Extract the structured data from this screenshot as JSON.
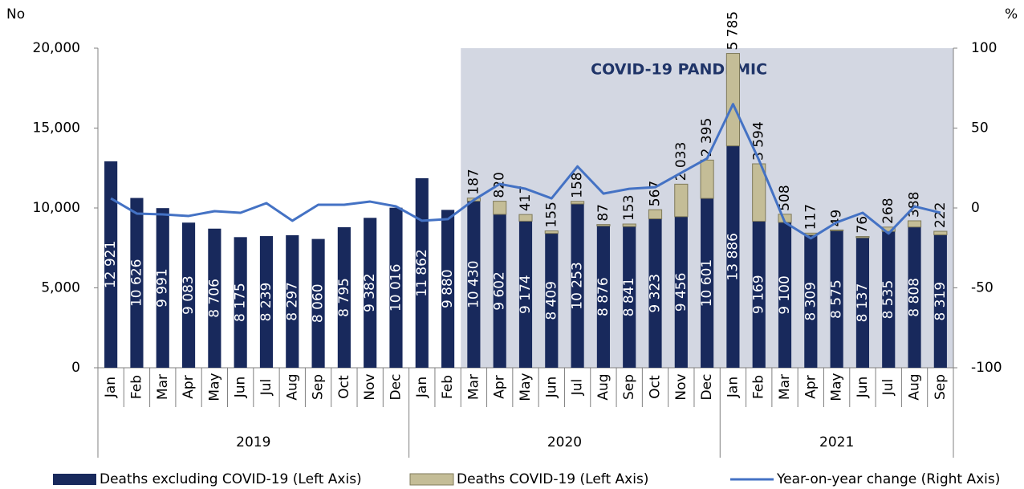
{
  "chart_data": {
    "type": "stacked_bar_line",
    "y_unit_label": "No",
    "y2_unit_label": "%",
    "annotation": {
      "text": "COVID-19 PANDEMIC",
      "from": [
        "2020",
        "Mar"
      ]
    },
    "category_groups": [
      {
        "label": "2019",
        "categories": [
          "Jan",
          "Feb",
          "Mar",
          "Apr",
          "May",
          "Jun",
          "Jul",
          "Aug",
          "Sep",
          "Oct",
          "Nov",
          "Dec"
        ]
      },
      {
        "label": "2020",
        "categories": [
          "Jan",
          "Feb",
          "Mar",
          "Apr",
          "May",
          "Jun",
          "Jul",
          "Aug",
          "Sep",
          "Oct",
          "Nov",
          "Dec"
        ]
      },
      {
        "label": "2021",
        "categories": [
          "Jan",
          "Feb",
          "Mar",
          "Apr",
          "May",
          "Jun",
          "Jul",
          "Aug",
          "Sep"
        ]
      }
    ],
    "series": [
      {
        "name": "Deaths excluding COVID-19 (Left Axis)",
        "color": "#18295c",
        "kind": "bar",
        "values": [
          12921,
          10626,
          9991,
          9083,
          8706,
          8175,
          8239,
          8297,
          8060,
          8795,
          9382,
          10016,
          11862,
          9880,
          10430,
          9602,
          9174,
          8409,
          10253,
          8876,
          8841,
          9323,
          9456,
          10601,
          13886,
          9169,
          9100,
          8309,
          8575,
          8137,
          8535,
          8808,
          8319
        ],
        "value_labels": [
          "12 921",
          "10 626",
          "9 991",
          "9 083",
          "8 706",
          "8 175",
          "8 239",
          "8 297",
          "8 060",
          "8 795",
          "9 382",
          "10 016",
          "11 862",
          "9 880",
          "10 430",
          "9 602",
          "9 174",
          "8 409",
          "10 253",
          "8 876",
          "8 841",
          "9 323",
          "9 456",
          "10 601",
          "13 886",
          "9 169",
          "9 100",
          "8 309",
          "8 575",
          "8 137",
          "8 535",
          "8 808",
          "8 319"
        ]
      },
      {
        "name": "Deaths COVID-19 (Left Axis)",
        "color": "#c4bd97",
        "kind": "bar",
        "values": [
          null,
          null,
          null,
          null,
          null,
          null,
          null,
          null,
          null,
          null,
          null,
          null,
          null,
          null,
          187,
          820,
          417,
          155,
          158,
          87,
          153,
          567,
          2033,
          2395,
          5785,
          3594,
          508,
          117,
          49,
          76,
          268,
          388,
          222
        ],
        "value_labels": [
          null,
          null,
          null,
          null,
          null,
          null,
          null,
          null,
          null,
          null,
          null,
          null,
          null,
          null,
          "187",
          "820",
          "417",
          "155",
          "158",
          "87",
          "153",
          "567",
          "2 033",
          "2 395",
          "5 785",
          "3 594",
          "508",
          "117",
          "49",
          "76",
          "268",
          "388",
          "222"
        ]
      },
      {
        "name": "Year-on-year change (Right Axis)",
        "color": "#4472c4",
        "kind": "line",
        "axis": "y2",
        "values": [
          6,
          -3.5,
          -4,
          -5,
          -2,
          -3,
          3,
          -8,
          2,
          2,
          4,
          1,
          -8,
          -7,
          5,
          15,
          12,
          6,
          26,
          9,
          12,
          13,
          22,
          31,
          65,
          30,
          -9,
          -19,
          -9,
          -3,
          -16,
          1,
          -3
        ]
      }
    ],
    "ylim": [
      0,
      20000
    ],
    "yticks": [
      0,
      {
        "value": 5000,
        "label": "5,000"
      },
      {
        "value": 10000,
        "label": "10,000"
      },
      {
        "value": 15000,
        "label": "15,000"
      },
      {
        "value": 20000,
        "label": "20,000"
      }
    ],
    "y2lim": [
      -100,
      100
    ],
    "y2ticks": [
      -100,
      -50,
      0,
      50,
      100
    ],
    "legend": "bottom"
  }
}
